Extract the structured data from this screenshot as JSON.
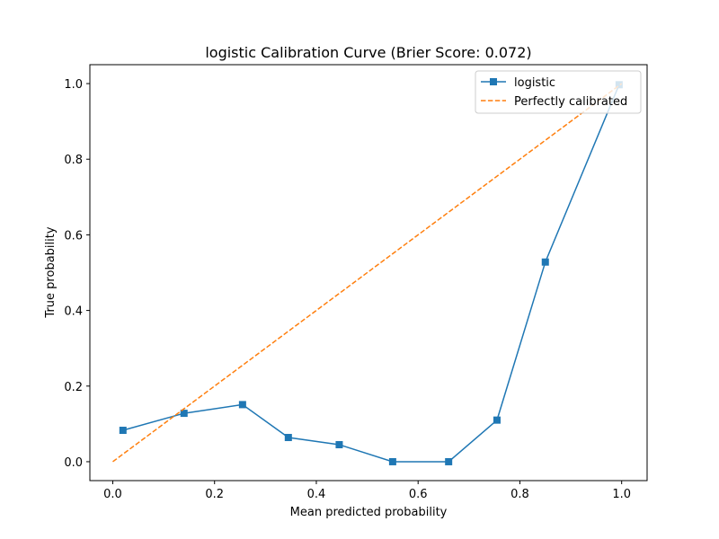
{
  "chart_data": {
    "type": "line",
    "title": "logistic Calibration Curve (Brier Score: 0.072)",
    "xlabel": "Mean predicted probability",
    "ylabel": "True probability",
    "xlim": [
      -0.045,
      1.05
    ],
    "ylim": [
      -0.05,
      1.05
    ],
    "xticks": [
      "0.0",
      "0.2",
      "0.4",
      "0.6",
      "0.8",
      "1.0"
    ],
    "yticks": [
      "0.0",
      "0.2",
      "0.4",
      "0.6",
      "0.8",
      "1.0"
    ],
    "grid": false,
    "legend_position": "top-right",
    "series": [
      {
        "name": "logistic",
        "color": "#1f77b4",
        "style": "solid",
        "marker": "square",
        "x": [
          0.02,
          0.14,
          0.255,
          0.345,
          0.445,
          0.55,
          0.66,
          0.755,
          0.85,
          0.995
        ],
        "y": [
          0.083,
          0.128,
          0.151,
          0.064,
          0.045,
          0.0,
          0.0,
          0.11,
          0.528,
          0.997
        ]
      },
      {
        "name": "Perfectly calibrated",
        "color": "#ff7f0e",
        "style": "dashed",
        "marker": "none",
        "x": [
          0.0,
          1.0
        ],
        "y": [
          0.0,
          1.0
        ]
      }
    ]
  }
}
